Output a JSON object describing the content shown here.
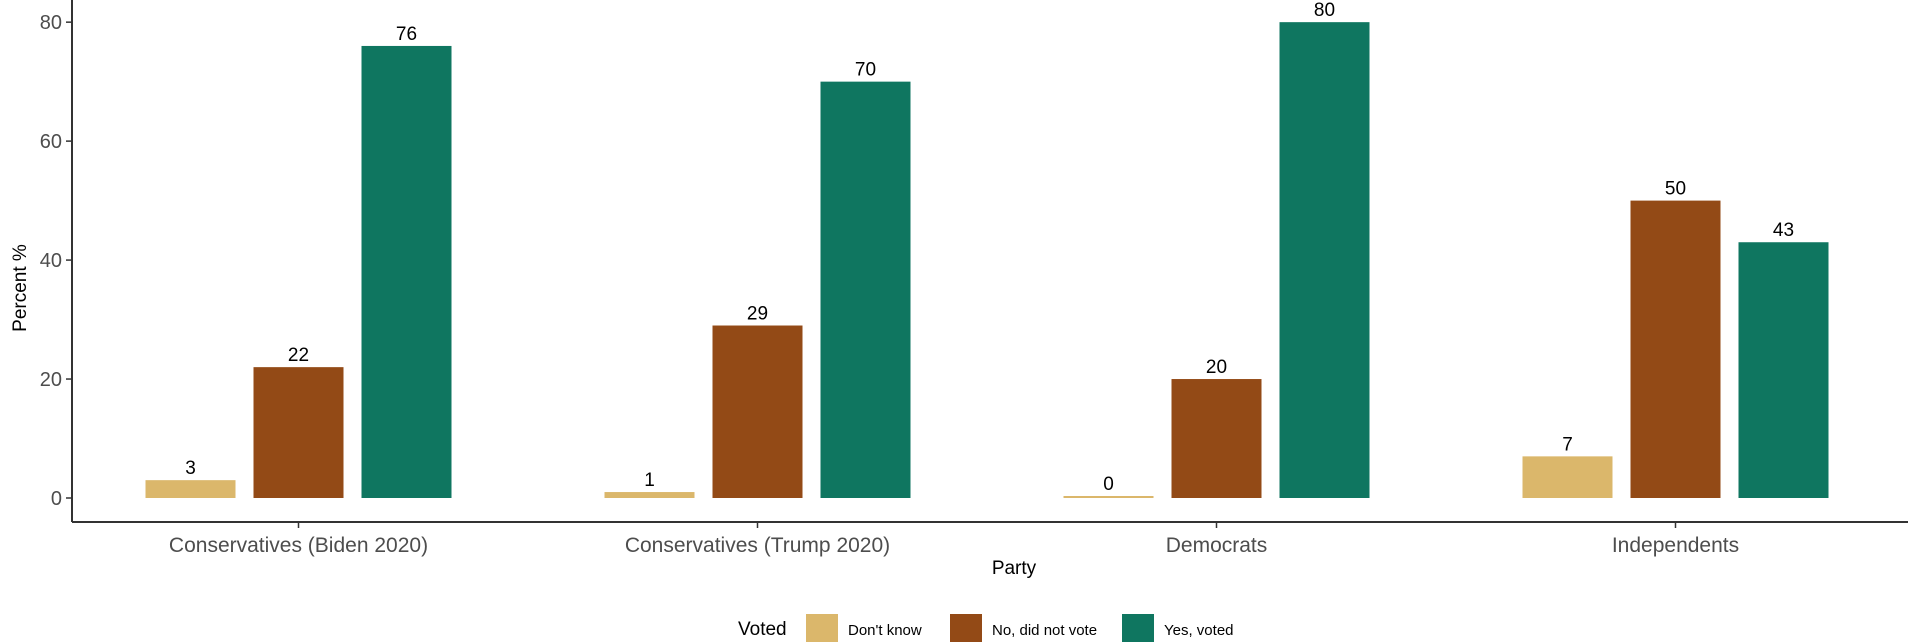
{
  "chart_data": {
    "type": "bar",
    "xlabel": "Party",
    "ylabel": "Percent %",
    "ylim": [
      0,
      83
    ],
    "yticks": [
      0,
      20,
      40,
      60,
      80
    ],
    "grid": false,
    "legend_position": "bottom",
    "legend_title": "Voted",
    "categories": [
      "Conservatives (Biden 2020)",
      "Conservatives (Trump 2020)",
      "Democrats",
      "Independents"
    ],
    "series": [
      {
        "name": "Don't know",
        "color": "#dbb76b",
        "values": [
          3,
          1,
          0,
          7
        ]
      },
      {
        "name": "No, did not vote",
        "color": "#934a16",
        "values": [
          22,
          29,
          20,
          50
        ]
      },
      {
        "name": "Yes, voted",
        "color": "#0f7660",
        "values": [
          76,
          70,
          80,
          43
        ]
      }
    ]
  }
}
